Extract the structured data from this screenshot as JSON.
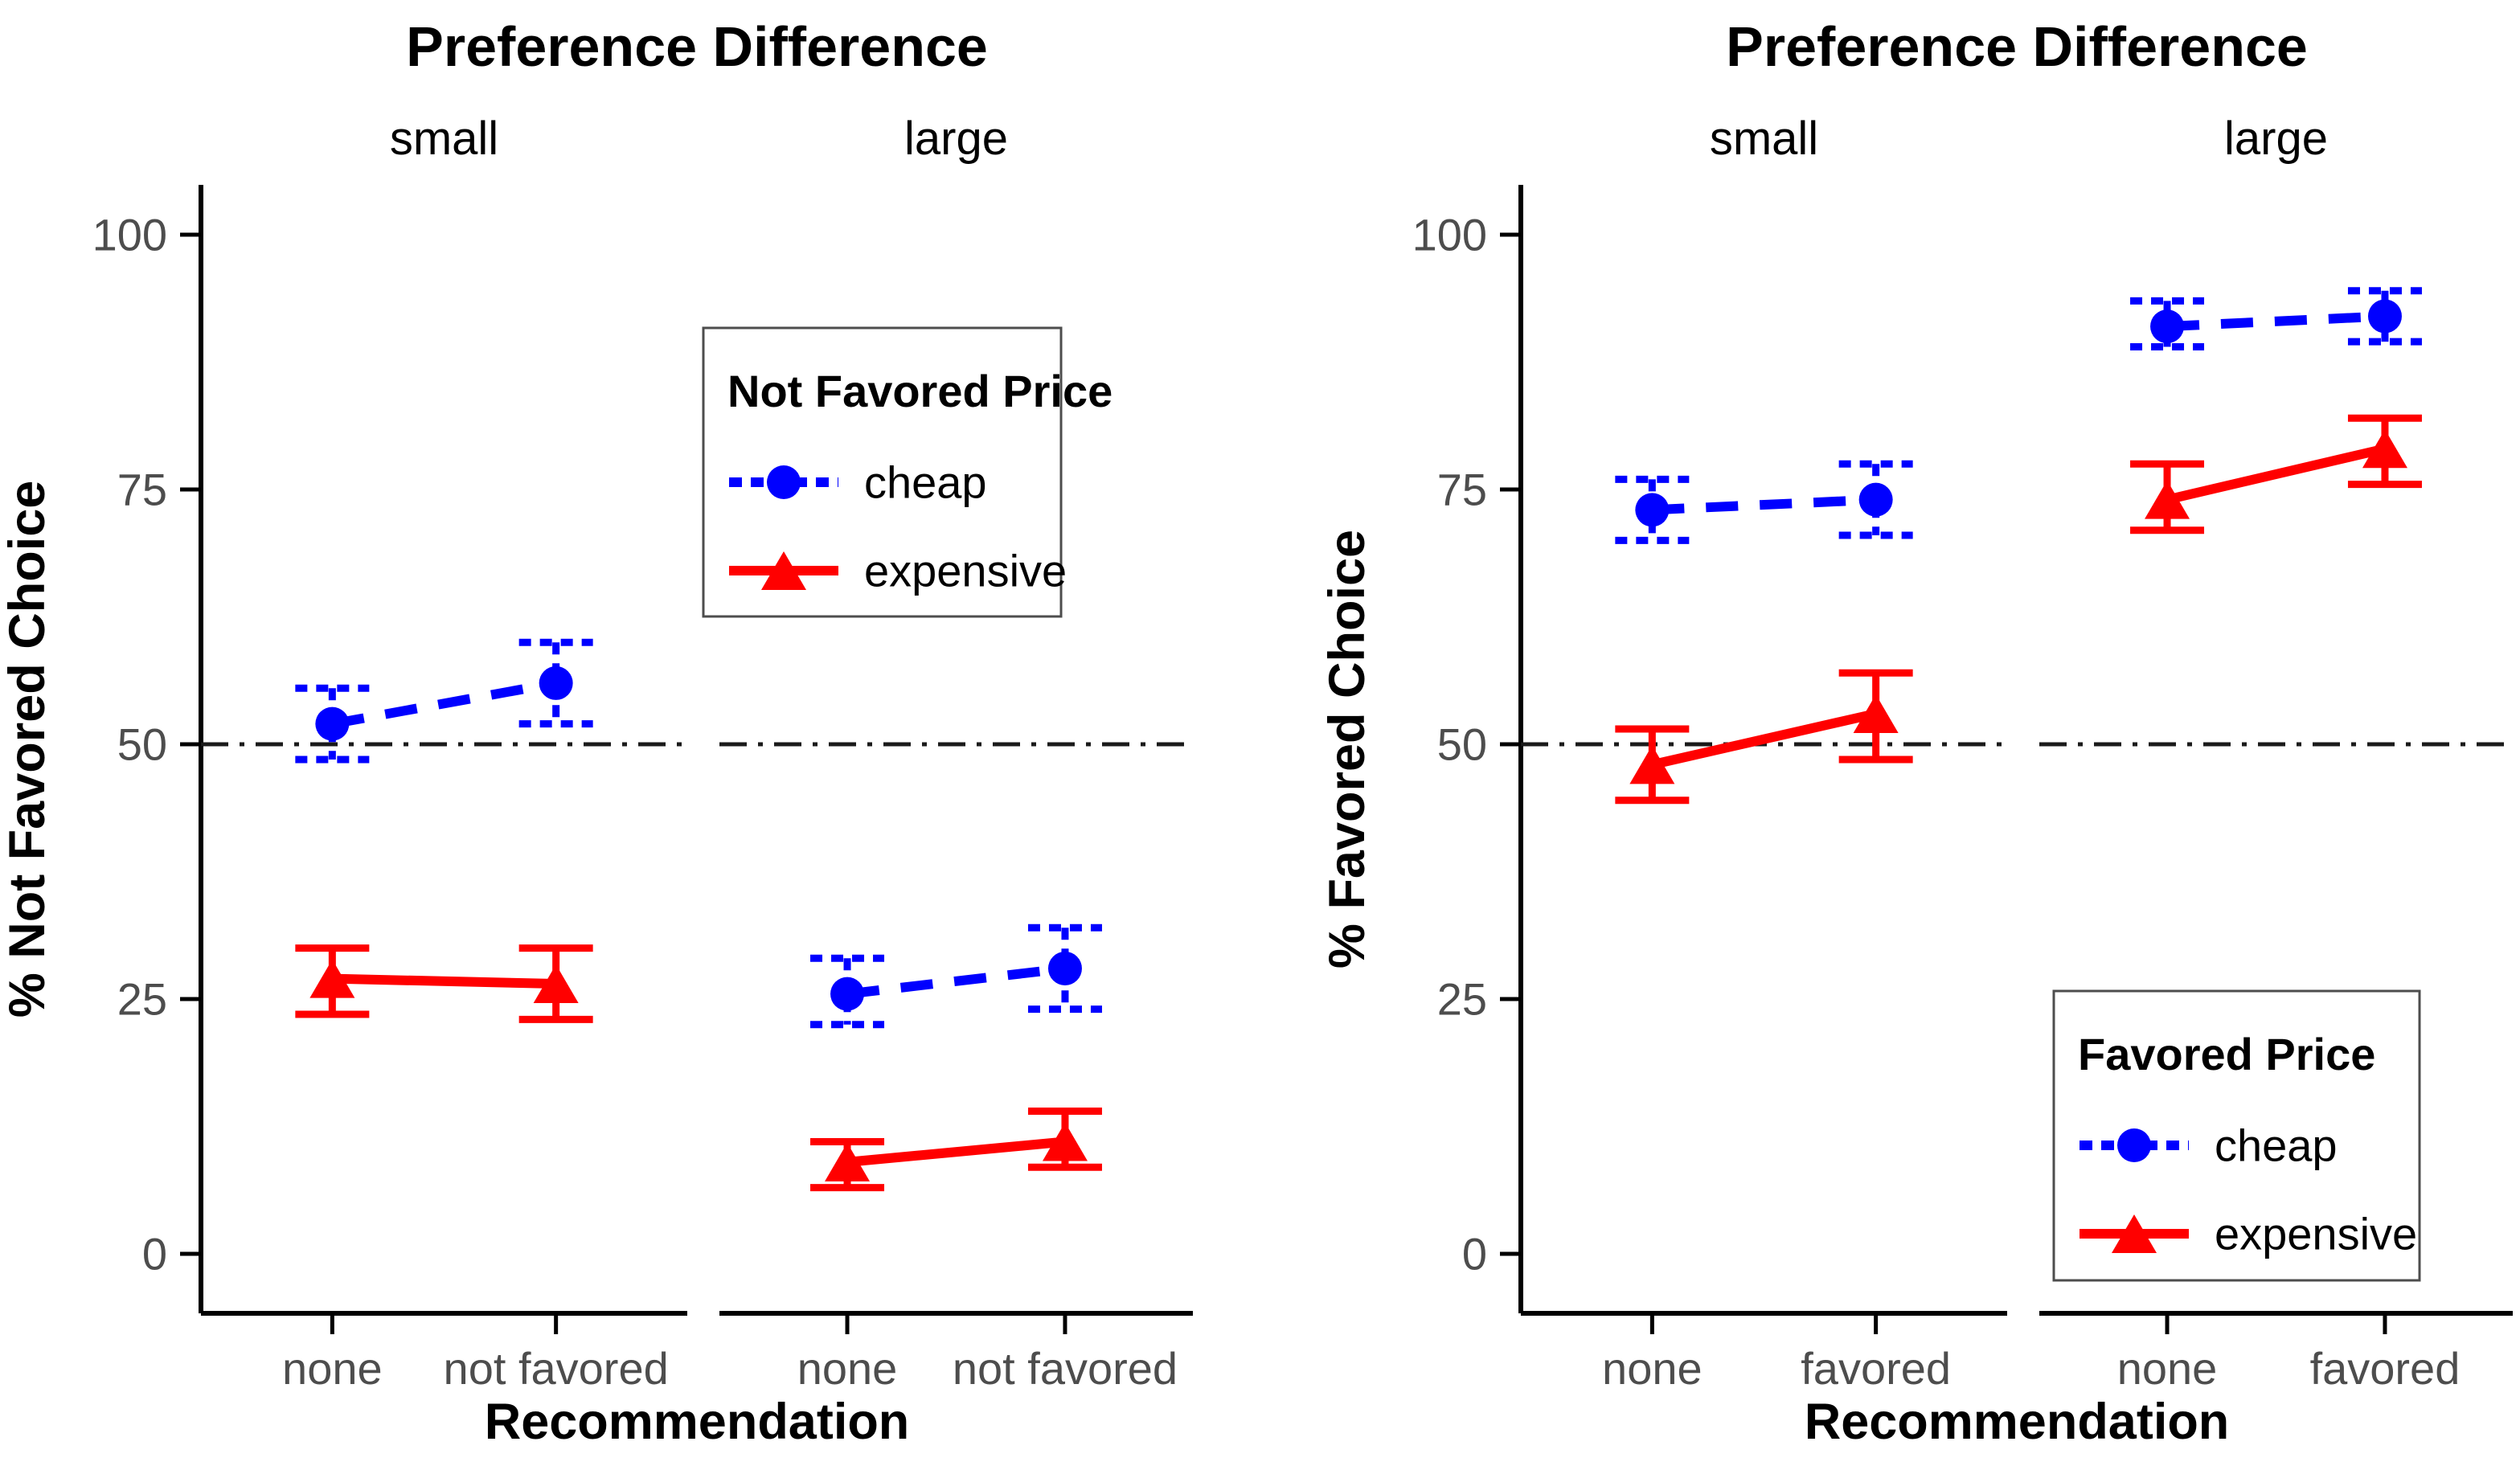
{
  "figure": {
    "background": "#FFFFFF"
  },
  "colors": {
    "cheap": "#0000FF",
    "expensive": "#FF0000",
    "axis": "#000000",
    "tick_text": "#4D4D4D",
    "reference_line": "#1A1A1A",
    "legend_border": "#4D4D4D",
    "title_text": "#000000"
  },
  "chart_data": [
    {
      "type": "line",
      "title": "Preference Difference",
      "xlabel": "Recommendation",
      "ylabel": "% Not Favored Choice",
      "ylim": [
        0,
        100
      ],
      "y_ticks": [
        0,
        25,
        50,
        75,
        100
      ],
      "reference_line_y": 50,
      "grid": false,
      "facets": [
        {
          "name": "small",
          "categories": [
            "none",
            "not favored"
          ],
          "series": [
            {
              "name": "cheap",
              "color": "#0000FF",
              "linestyle": "dashed",
              "marker": "circle",
              "values": [
                52,
                56
              ],
              "ci_low": [
                48.5,
                52
              ],
              "ci_high": [
                55.5,
                60
              ]
            },
            {
              "name": "expensive",
              "color": "#FF0000",
              "linestyle": "solid",
              "marker": "triangle",
              "values": [
                27,
                26.5
              ],
              "ci_low": [
                23.5,
                23
              ],
              "ci_high": [
                30,
                30
              ]
            }
          ]
        },
        {
          "name": "large",
          "categories": [
            "none",
            "not favored"
          ],
          "series": [
            {
              "name": "cheap",
              "color": "#0000FF",
              "linestyle": "dashed",
              "marker": "circle",
              "values": [
                25.5,
                28
              ],
              "ci_low": [
                22.5,
                24
              ],
              "ci_high": [
                29,
                32
              ]
            },
            {
              "name": "expensive",
              "color": "#FF0000",
              "linestyle": "solid",
              "marker": "triangle",
              "values": [
                9,
                11
              ],
              "ci_low": [
                6.5,
                8.5
              ],
              "ci_high": [
                11,
                14
              ]
            }
          ]
        }
      ],
      "legend": {
        "title": "Not Favored Price",
        "items": [
          "cheap",
          "expensive"
        ],
        "position": "upper-middle"
      }
    },
    {
      "type": "line",
      "title": "Preference Difference",
      "xlabel": "Recommendation",
      "ylabel": "% Favored Choice",
      "ylim": [
        0,
        100
      ],
      "y_ticks": [
        0,
        25,
        50,
        75,
        100
      ],
      "reference_line_y": 50,
      "grid": false,
      "facets": [
        {
          "name": "small",
          "categories": [
            "none",
            "favored"
          ],
          "series": [
            {
              "name": "cheap",
              "color": "#0000FF",
              "linestyle": "dashed",
              "marker": "circle",
              "values": [
                73,
                74
              ],
              "ci_low": [
                70,
                70.5
              ],
              "ci_high": [
                76,
                77.5
              ]
            },
            {
              "name": "expensive",
              "color": "#FF0000",
              "linestyle": "solid",
              "marker": "triangle",
              "values": [
                48,
                53
              ],
              "ci_low": [
                44.5,
                48.5
              ],
              "ci_high": [
                51.5,
                57
              ]
            }
          ]
        },
        {
          "name": "large",
          "categories": [
            "none",
            "favored"
          ],
          "series": [
            {
              "name": "cheap",
              "color": "#0000FF",
              "linestyle": "dashed",
              "marker": "circle",
              "values": [
                91,
                92
              ],
              "ci_low": [
                89,
                89.5
              ],
              "ci_high": [
                93.5,
                94.5
              ]
            },
            {
              "name": "expensive",
              "color": "#FF0000",
              "linestyle": "solid",
              "marker": "triangle",
              "values": [
                74,
                79
              ],
              "ci_low": [
                71,
                75.5
              ],
              "ci_high": [
                77.5,
                82
              ]
            }
          ]
        }
      ],
      "legend": {
        "title": "Favored Price",
        "items": [
          "cheap",
          "expensive"
        ],
        "position": "lower-right"
      }
    }
  ]
}
